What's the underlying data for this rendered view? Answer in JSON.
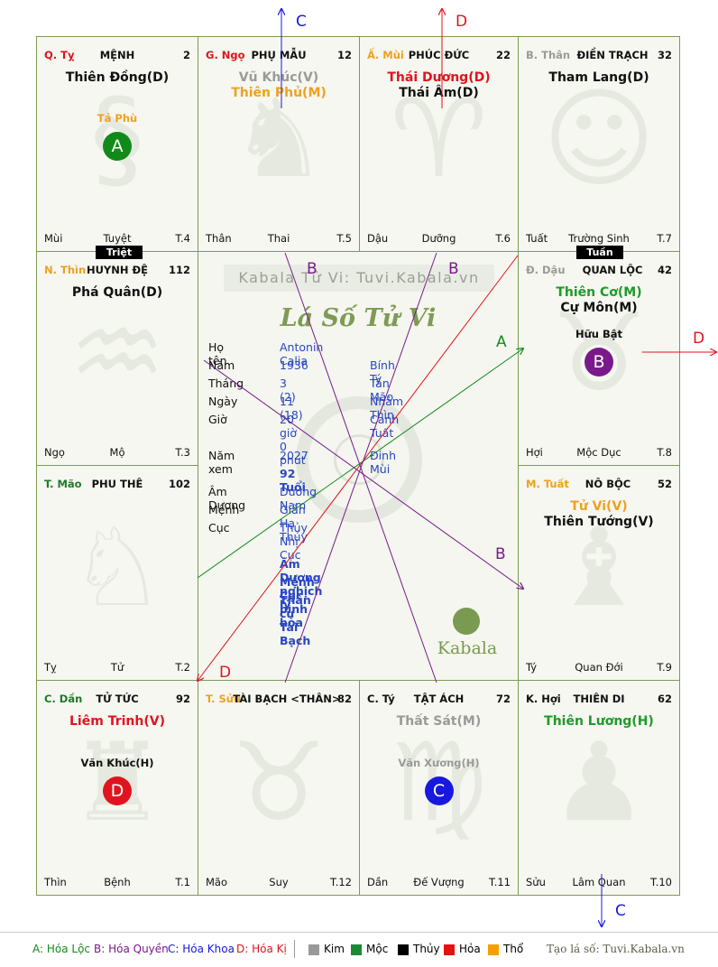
{
  "palaces": [
    {
      "id": "ty",
      "stem": "Q. Tỵ",
      "stem_color": "#e0141e",
      "name": "MỆNH",
      "num": "2",
      "stars": [
        {
          "t": "Thiên Đồng(D)",
          "c": "#111111"
        }
      ],
      "minor": "Tả Phù",
      "minor_color": "#f0a020",
      "badge": "A",
      "badge_color": "#128a1a",
      "foot": {
        "l": "Mùi",
        "c": "Tuyệt",
        "r": "T.4"
      }
    },
    {
      "id": "ngo",
      "stem": "G. Ngọ",
      "stem_color": "#e0141e",
      "name": "PHỤ MẪU",
      "num": "12",
      "stars": [
        {
          "t": "Vũ Khúc(V)",
          "c": "#9a9a9a"
        },
        {
          "t": "Thiên Phủ(M)",
          "c": "#f0a020"
        }
      ],
      "minor": "",
      "badge": "",
      "foot": {
        "l": "Thân",
        "c": "Thai",
        "r": "T.5"
      }
    },
    {
      "id": "mui",
      "stem": "Ấ. Mùi",
      "stem_color": "#f0a020",
      "name": "PHÚC ĐỨC",
      "num": "22",
      "stars": [
        {
          "t": "Thái Dương(D)",
          "c": "#e0141e"
        },
        {
          "t": "Thái Âm(D)",
          "c": "#111111"
        }
      ],
      "minor": "",
      "badge": "",
      "foot": {
        "l": "Dậu",
        "c": "Dưỡng",
        "r": "T.6"
      }
    },
    {
      "id": "than",
      "stem": "B. Thân",
      "stem_color": "#9a9a9a",
      "name": "ĐIỀN TRẠCH",
      "num": "32",
      "stars": [
        {
          "t": "Tham Lang(D)",
          "c": "#111111"
        }
      ],
      "minor": "",
      "badge": "",
      "foot": {
        "l": "Tuất",
        "c": "Trường Sinh",
        "r": "T.7"
      }
    },
    {
      "id": "thin",
      "stem": "N. Thìn",
      "stem_color": "#f0a020",
      "name": "HUYNH ĐỆ",
      "num": "112",
      "stars": [
        {
          "t": "Phá Quân(D)",
          "c": "#111111"
        }
      ],
      "minor": "",
      "badge": "",
      "foot": {
        "l": "Ngọ",
        "c": "Mộ",
        "r": "T.3"
      }
    },
    {
      "id": "dau",
      "stem": "Đ. Dậu",
      "stem_color": "#9a9a9a",
      "name": "QUAN LỘC",
      "num": "42",
      "stars": [
        {
          "t": "Thiên Cơ(M)",
          "c": "#1f9a2a"
        },
        {
          "t": "Cự Môn(M)",
          "c": "#111111"
        }
      ],
      "minor": "Hữu Bật",
      "minor_color": "#111111",
      "badge": "B",
      "badge_color": "#7a1a8a",
      "foot": {
        "l": "Hợi",
        "c": "Mộc Dục",
        "r": "T.8"
      }
    },
    {
      "id": "mao",
      "stem": "T. Mão",
      "stem_color": "#1f7a2a",
      "name": "PHU THÊ",
      "num": "102",
      "stars": [],
      "minor": "",
      "badge": "",
      "foot": {
        "l": "Tỵ",
        "c": "Tử",
        "r": "T.2"
      }
    },
    {
      "id": "tuat",
      "stem": "M. Tuất",
      "stem_color": "#f0a020",
      "name": "NÔ BỘC",
      "num": "52",
      "stars": [
        {
          "t": "Tử Vi(V)",
          "c": "#f0a020"
        },
        {
          "t": "Thiên Tướng(V)",
          "c": "#111111"
        }
      ],
      "minor": "",
      "badge": "",
      "foot": {
        "l": "Tý",
        "c": "Quan Đới",
        "r": "T.9"
      }
    },
    {
      "id": "dan",
      "stem": "C. Dần",
      "stem_color": "#1f7a2a",
      "name": "TỬ TỨC",
      "num": "92",
      "stars": [
        {
          "t": "Liêm Trinh(V)",
          "c": "#e0141e"
        }
      ],
      "minor": "Văn Khúc(H)",
      "minor_color": "#111111",
      "badge": "D",
      "badge_color": "#e0141e",
      "foot": {
        "l": "Thìn",
        "c": "Bệnh",
        "r": "T.1"
      }
    },
    {
      "id": "suu",
      "stem": "T. Sửu",
      "stem_color": "#f0a020",
      "name": "TÀI BẠCH <THÂN>",
      "num": "82",
      "stars": [],
      "minor": "",
      "badge": "",
      "foot": {
        "l": "Mão",
        "c": "Suy",
        "r": "T.12"
      }
    },
    {
      "id": "ty2",
      "stem": "C. Tý",
      "stem_color": "#111111",
      "name": "TẬT ÁCH",
      "num": "72",
      "stars": [
        {
          "t": "Thất Sát(M)",
          "c": "#9a9a9a"
        }
      ],
      "minor": "Văn Xương(H)",
      "minor_color": "#9a9a9a",
      "badge": "C",
      "badge_color": "#1818e0",
      "foot": {
        "l": "Dần",
        "c": "Đế Vượng",
        "r": "T.11"
      }
    },
    {
      "id": "hoi",
      "stem": "K. Hợi",
      "stem_color": "#111111",
      "name": "THIÊN DI",
      "num": "62",
      "stars": [
        {
          "t": "Thiên Lương(H)",
          "c": "#1f9a2a"
        }
      ],
      "minor": "",
      "badge": "",
      "foot": {
        "l": "Sửu",
        "c": "Lâm Quan",
        "r": "T.10"
      }
    }
  ],
  "tags": {
    "triet": "Triệt",
    "tuan": "Tuần"
  },
  "center": {
    "watermark": "Kabala Tử Vi: Tuvi.Kabala.vn",
    "title": "Lá Số Tử Vi",
    "rows": [
      {
        "label": "Họ tên",
        "v1": "Antonin Calia",
        "v2": ""
      },
      {
        "label": "Năm",
        "v1": "1936",
        "v2": "Bính Tý"
      },
      {
        "label": "Tháng",
        "v1": "3  (2)",
        "v2": "Tân Mão"
      },
      {
        "label": "Ngày",
        "v1": "11  (18)",
        "v2": "Nhâm Thìn"
      },
      {
        "label": "Giờ",
        "v1": "20 giờ 0 phút",
        "v2": "Canh Tuất"
      }
    ],
    "year_row": {
      "label": "Năm xem",
      "v1": "2027",
      "v2": "Đinh Mùi"
    },
    "age": "92 Tuổi",
    "rows2": [
      {
        "label": "Âm Dương",
        "v1": "Dương Nam"
      },
      {
        "label": "Mệnh",
        "v1": "Giản Hạ Thủy"
      },
      {
        "label": "Cục",
        "v1": "Thủy Nhị Cục"
      }
    ],
    "notes": [
      "Âm Dương nghịch lý",
      "Mệnh Cục bình hòa",
      "Thân cư Tài Bạch"
    ],
    "logo": "Kabala"
  },
  "arrow_labels": {
    "A": "A",
    "B": "B",
    "C": "C",
    "D": "D"
  },
  "legend": {
    "a": "A: Hóa Lộc",
    "b": "B: Hóa Quyền",
    "c": "C: Hóa Khoa",
    "d": "D: Hóa Kị",
    "kim": "Kim",
    "moc": "Mộc",
    "thuy": "Thủy",
    "hoa": "Hỏa",
    "tho": "Thổ",
    "kim_color": "#999999",
    "moc_color": "#1a8a35",
    "thuy_color": "#000000",
    "hoa_color": "#e81010",
    "tho_color": "#f5a000",
    "site": "Tạo lá số: Tuvi.Kabala.vn"
  }
}
